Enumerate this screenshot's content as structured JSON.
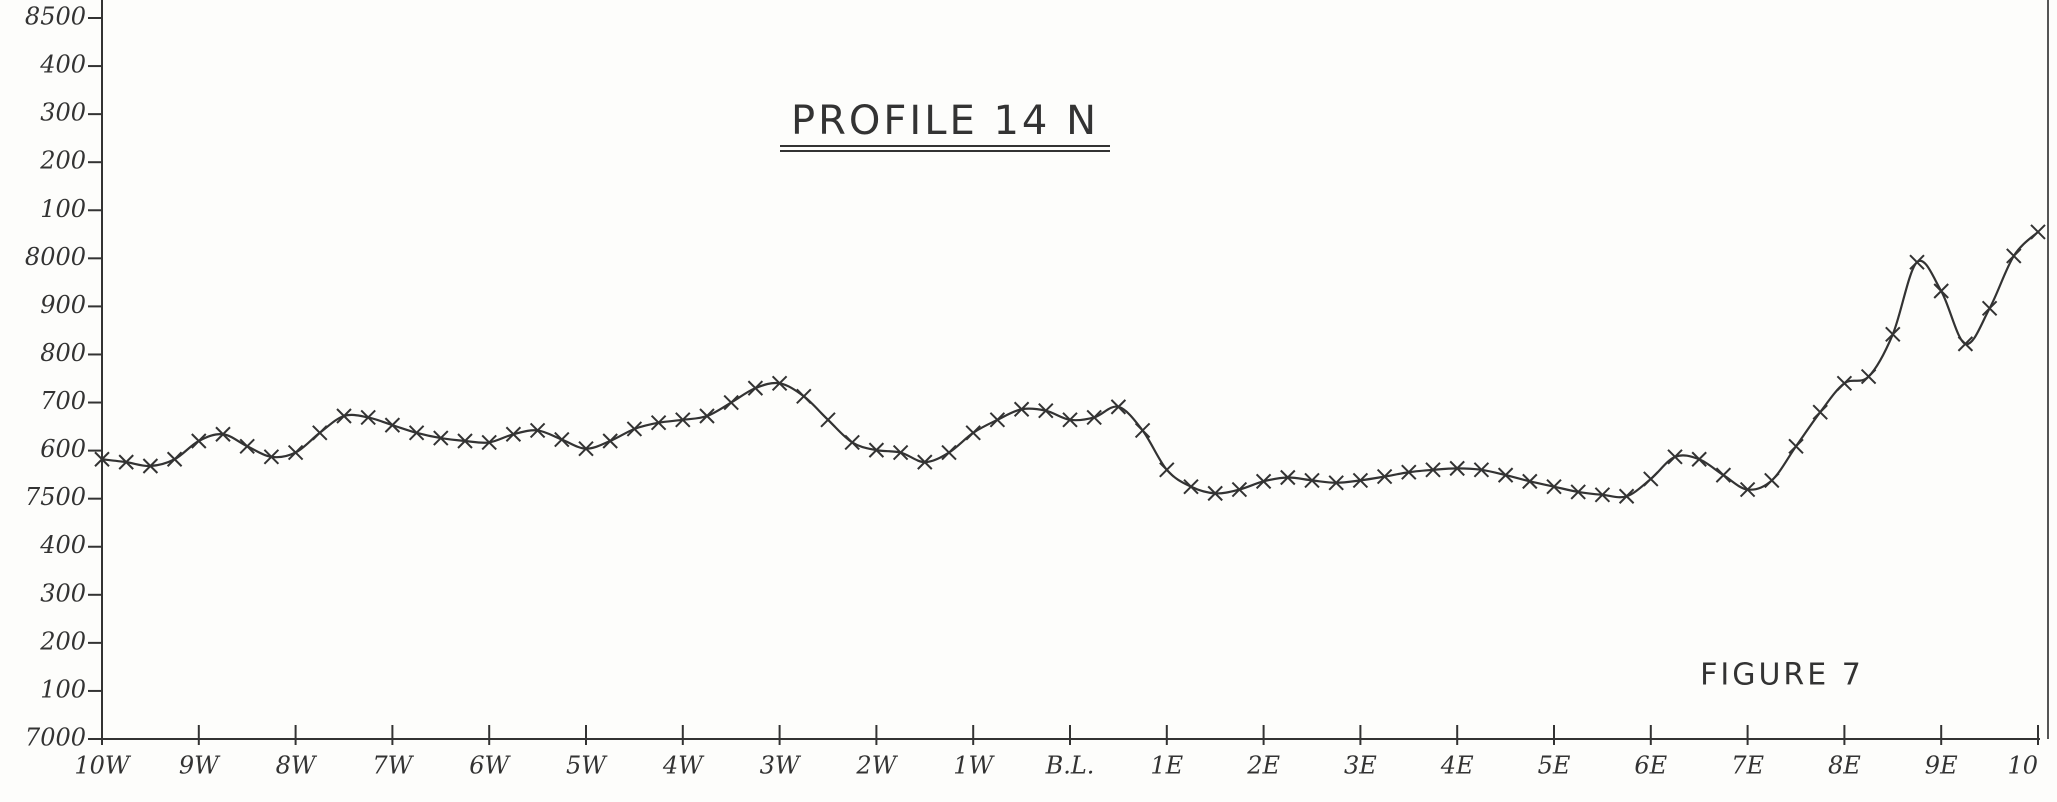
{
  "chart_data": {
    "type": "line",
    "title": "PROFILE 14 N",
    "annotation": "FIGURE 7",
    "x": [
      -10,
      -9.75,
      -9.5,
      -9.25,
      -9,
      -8.75,
      -8.5,
      -8.25,
      -8,
      -7.75,
      -7.5,
      -7.25,
      -7,
      -6.75,
      -6.5,
      -6.25,
      -6,
      -5.75,
      -5.5,
      -5.25,
      -5,
      -4.75,
      -4.5,
      -4.25,
      -4,
      -3.75,
      -3.5,
      -3.25,
      -3,
      -2.75,
      -2.5,
      -2.25,
      -2,
      -1.75,
      -1.5,
      -1.25,
      -1,
      -0.75,
      -0.5,
      -0.25,
      0,
      0.25,
      0.5,
      0.75,
      1,
      1.25,
      1.5,
      1.75,
      2,
      2.25,
      2.5,
      2.75,
      3,
      3.25,
      3.5,
      3.75,
      4,
      4.25,
      4.5,
      4.75,
      5,
      5.25,
      5.5,
      5.75,
      6,
      6.25,
      6.5,
      6.75,
      7,
      7.25,
      7.5,
      7.75,
      8,
      8.25,
      8.5,
      8.75,
      9,
      9.25,
      9.5,
      9.75,
      10
    ],
    "series": [
      {
        "color": "#333333",
        "values": [
          7582,
          7576,
          7568,
          7582,
          7620,
          7634,
          7609,
          7587,
          7596,
          7637,
          7672,
          7669,
          7653,
          7637,
          7626,
          7620,
          7617,
          7634,
          7642,
          7623,
          7604,
          7620,
          7645,
          7658,
          7664,
          7672,
          7700,
          7730,
          7740,
          7713,
          7664,
          7617,
          7601,
          7596,
          7576,
          7596,
          7637,
          7664,
          7686,
          7683,
          7664,
          7669,
          7691,
          7642,
          7560,
          7525,
          7511,
          7519,
          7536,
          7544,
          7538,
          7533,
          7538,
          7546,
          7555,
          7560,
          7563,
          7560,
          7549,
          7536,
          7525,
          7514,
          7508,
          7505,
          7541,
          7587,
          7582,
          7549,
          7519,
          7538,
          7609,
          7680,
          7740,
          7754,
          7842,
          7992,
          7932,
          7822,
          7896,
          8005,
          8055
        ]
      }
    ],
    "xlim": [
      -10,
      10
    ],
    "xticks": [
      {
        "value": -10,
        "label": "10W"
      },
      {
        "value": -9,
        "label": "9W"
      },
      {
        "value": -8,
        "label": "8W"
      },
      {
        "value": -7,
        "label": "7W"
      },
      {
        "value": -6,
        "label": "6W"
      },
      {
        "value": -5,
        "label": "5W"
      },
      {
        "value": -4,
        "label": "4W"
      },
      {
        "value": -3,
        "label": "3W"
      },
      {
        "value": -2,
        "label": "2W"
      },
      {
        "value": -1,
        "label": "1W"
      },
      {
        "value": 0,
        "label": "B.L."
      },
      {
        "value": 1,
        "label": "1E"
      },
      {
        "value": 2,
        "label": "2E"
      },
      {
        "value": 3,
        "label": "3E"
      },
      {
        "value": 4,
        "label": "4E"
      },
      {
        "value": 5,
        "label": "5E"
      },
      {
        "value": 6,
        "label": "6E"
      },
      {
        "value": 7,
        "label": "7E"
      },
      {
        "value": 8,
        "label": "8E"
      },
      {
        "value": 9,
        "label": "9E"
      },
      10
    ],
    "ylim": [
      7000,
      8500
    ],
    "yticks": [
      7000,
      {
        "value": 7100,
        "label": "100"
      },
      {
        "value": 7200,
        "label": "200"
      },
      {
        "value": 7300,
        "label": "300"
      },
      {
        "value": 7400,
        "label": "400"
      },
      7500,
      {
        "value": 7600,
        "label": "600"
      },
      {
        "value": 7700,
        "label": "700"
      },
      {
        "value": 7800,
        "label": "800"
      },
      {
        "value": 7900,
        "label": "900"
      },
      8000,
      {
        "value": 8100,
        "label": "100"
      },
      {
        "value": 8200,
        "label": "200"
      },
      {
        "value": 8300,
        "label": "300"
      },
      {
        "value": 8400,
        "label": "400"
      },
      8500
    ]
  }
}
